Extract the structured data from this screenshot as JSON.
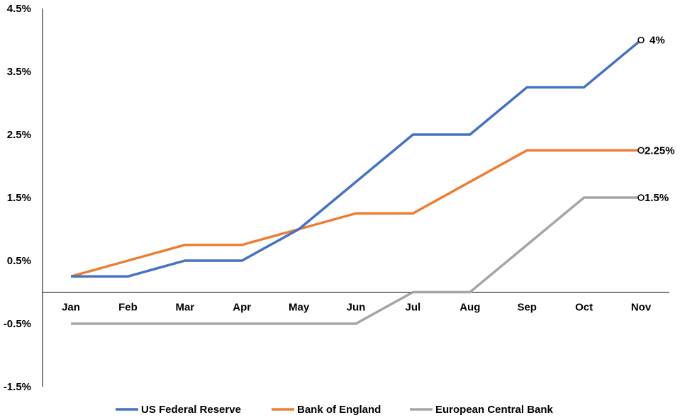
{
  "chart_data": {
    "type": "line",
    "title": "",
    "xlabel": "",
    "ylabel": "",
    "categories": [
      "Jan",
      "Feb",
      "Mar",
      "Apr",
      "May",
      "Jun",
      "Jul",
      "Aug",
      "Sep",
      "Oct",
      "Nov"
    ],
    "y_ticks": [
      4.5,
      3.5,
      2.5,
      1.5,
      0.5,
      -0.5,
      -1.5
    ],
    "y_tick_labels": [
      "4.5%",
      "3.5%",
      "2.5%",
      "1.5%",
      "0.5%",
      "-0.5%",
      "-1.5%"
    ],
    "ylim": [
      -1.5,
      4.5
    ],
    "grid": false,
    "legend_position": "bottom",
    "series": [
      {
        "name": "US Federal Reserve",
        "color": "#4472C4",
        "values": [
          0.25,
          0.25,
          0.5,
          0.5,
          1.0,
          1.75,
          2.5,
          2.5,
          3.25,
          3.25,
          4.0
        ],
        "end_label": "4%"
      },
      {
        "name": "Bank of England",
        "color": "#ED7D31",
        "values": [
          0.25,
          0.5,
          0.75,
          0.75,
          1.0,
          1.25,
          1.25,
          1.75,
          2.25,
          2.25,
          2.25
        ],
        "end_label": "2.25%"
      },
      {
        "name": "European Central Bank",
        "color": "#A5A5A5",
        "values": [
          -0.5,
          -0.5,
          -0.5,
          -0.5,
          -0.5,
          -0.5,
          0.0,
          0.0,
          0.75,
          1.5,
          1.5
        ],
        "end_label": "1.5%"
      }
    ]
  }
}
